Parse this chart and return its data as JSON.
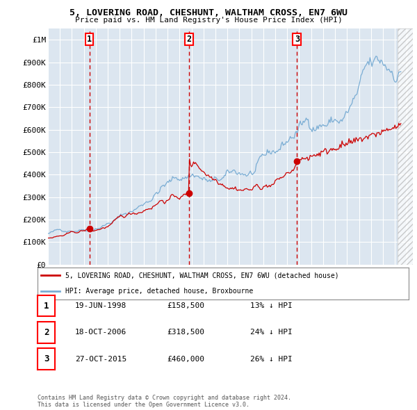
{
  "title": "5, LOVERING ROAD, CHESHUNT, WALTHAM CROSS, EN7 6WU",
  "subtitle": "Price paid vs. HM Land Registry's House Price Index (HPI)",
  "ylim": [
    0,
    1050000
  ],
  "yticks": [
    0,
    100000,
    200000,
    300000,
    400000,
    500000,
    600000,
    700000,
    800000,
    900000,
    1000000
  ],
  "ytick_labels": [
    "£0",
    "£100K",
    "£200K",
    "£300K",
    "£400K",
    "£500K",
    "£600K",
    "£700K",
    "£800K",
    "£900K",
    "£1M"
  ],
  "xlim_start": 1995.25,
  "xlim_end": 2025.5,
  "hatch_start": 2024.25,
  "sale_color": "#cc0000",
  "hpi_color": "#7aadd4",
  "background_color": "#dce6f0",
  "plot_bg_color": "#dce6f0",
  "grid_color": "#ffffff",
  "dashed_line_color": "#cc0000",
  "sales": [
    {
      "date_num": 1998.46,
      "price": 158500,
      "label": "1"
    },
    {
      "date_num": 2006.8,
      "price": 318500,
      "label": "2"
    },
    {
      "date_num": 2015.82,
      "price": 460000,
      "label": "3"
    }
  ],
  "legend_entries": [
    "5, LOVERING ROAD, CHESHUNT, WALTHAM CROSS, EN7 6WU (detached house)",
    "HPI: Average price, detached house, Broxbourne"
  ],
  "table_rows": [
    {
      "num": "1",
      "date": "19-JUN-1998",
      "price": "£158,500",
      "hpi": "13% ↓ HPI"
    },
    {
      "num": "2",
      "date": "18-OCT-2006",
      "price": "£318,500",
      "hpi": "24% ↓ HPI"
    },
    {
      "num": "3",
      "date": "27-OCT-2015",
      "price": "£460,000",
      "hpi": "26% ↓ HPI"
    }
  ],
  "footer": "Contains HM Land Registry data © Crown copyright and database right 2024.\nThis data is licensed under the Open Government Licence v3.0."
}
